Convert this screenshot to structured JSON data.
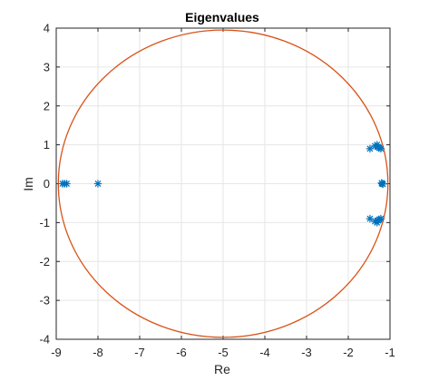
{
  "chart_data": {
    "type": "scatter",
    "title": "Eigenvalues",
    "xlabel": "Re",
    "ylabel": "Im",
    "xlim": [
      -9,
      -1
    ],
    "ylim": [
      -4,
      4
    ],
    "xticks": [
      "-9",
      "-8",
      "-7",
      "-6",
      "-5",
      "-4",
      "-3",
      "-2",
      "-1"
    ],
    "yticks": [
      "4",
      "3",
      "2",
      "1",
      "0",
      "-1",
      "-2",
      "-3",
      "-4"
    ],
    "grid": true,
    "marker": "*",
    "colors": {
      "points": "#0072BD",
      "circle": "#D95319",
      "grid": "#E6E6E6",
      "axes": "#262626"
    },
    "series": [
      {
        "values": [
          [
            -8.85,
            0
          ],
          [
            -8.8,
            0
          ],
          [
            -8.75,
            0
          ],
          [
            -8.0,
            0
          ],
          [
            -1.48,
            0.9
          ],
          [
            -1.36,
            0.97
          ],
          [
            -1.31,
            1.0
          ],
          [
            -1.28,
            0.95
          ],
          [
            -1.26,
            0.92
          ],
          [
            -1.22,
            0.9
          ],
          [
            -1.2,
            0.02
          ],
          [
            -1.19,
            0.0
          ],
          [
            -1.17,
            -0.01
          ],
          [
            -1.48,
            -0.9
          ],
          [
            -1.36,
            -0.97
          ],
          [
            -1.31,
            -1.0
          ],
          [
            -1.28,
            -0.95
          ],
          [
            -1.26,
            -0.92
          ],
          [
            -1.22,
            -0.9
          ]
        ]
      }
    ],
    "circle": {
      "center": [
        -5,
        0
      ],
      "radius": 3.95
    }
  }
}
